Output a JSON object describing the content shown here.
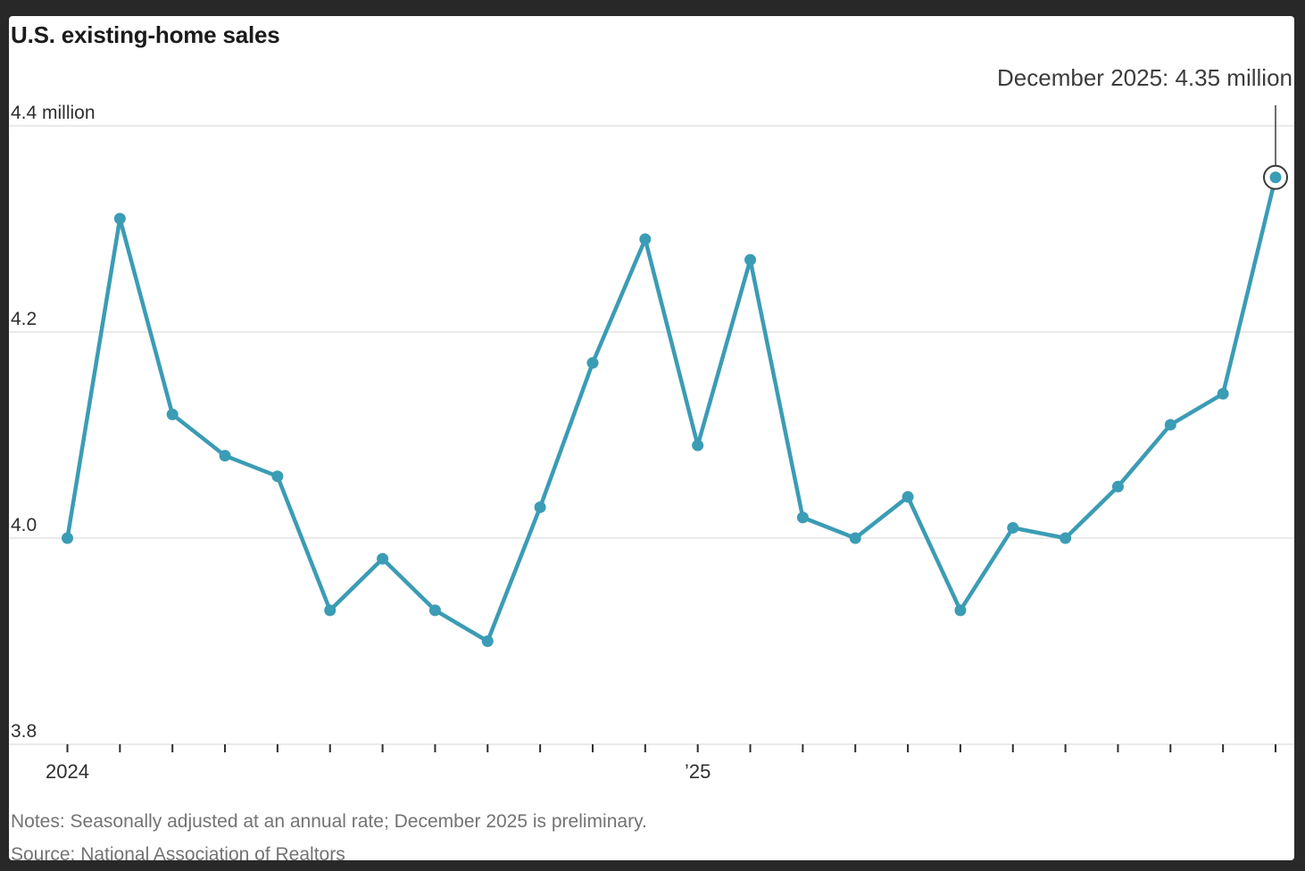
{
  "title": "U.S. existing-home sales",
  "annotation": {
    "text": "December 2025: 4.35 million",
    "point_label": "Dec 2025",
    "point_value": 4.35,
    "point_index": 23
  },
  "notes": "Notes: Seasonally adjusted at an annual rate; December 2025 is preliminary.",
  "source": "Source: National Association of Realtors",
  "colors": {
    "background": "#282828",
    "card": "#FFFFFF",
    "line": "#3B9CB5",
    "grid": "#E4E4E4",
    "axis_text": "#2E2E2E",
    "muted_text": "#737373",
    "annotation_ring": "#3A3A3A"
  },
  "chart_data": {
    "type": "line",
    "title": "U.S. existing-home sales",
    "unit": "million homes, seasonally adjusted annual rate",
    "x": [
      "Jan 2024",
      "Feb 2024",
      "Mar 2024",
      "Apr 2024",
      "May 2024",
      "Jun 2024",
      "Jul 2024",
      "Aug 2024",
      "Sep 2024",
      "Oct 2024",
      "Nov 2024",
      "Dec 2024",
      "Jan 2025",
      "Feb 2025",
      "Mar 2025",
      "Apr 2025",
      "May 2025",
      "Jun 2025",
      "Jul 2025",
      "Aug 2025",
      "Sep 2025",
      "Oct 2025",
      "Nov 2025",
      "Dec 2025"
    ],
    "values": [
      4.0,
      4.31,
      4.12,
      4.08,
      4.06,
      3.93,
      3.98,
      3.93,
      3.9,
      4.03,
      4.17,
      4.29,
      4.09,
      4.27,
      4.02,
      4.0,
      4.04,
      3.93,
      4.01,
      4.0,
      4.05,
      4.11,
      4.14,
      4.35
    ],
    "ylim": [
      3.8,
      4.4
    ],
    "yticks": [
      {
        "value": 4.4,
        "label": "4.4 million"
      },
      {
        "value": 4.2,
        "label": "4.2"
      },
      {
        "value": 4.0,
        "label": "4.0"
      },
      {
        "value": 3.8,
        "label": "3.8"
      }
    ],
    "xticks": "one per month",
    "xlabels": [
      {
        "index": 0,
        "label": "2024"
      },
      {
        "index": 12,
        "label": "’25"
      }
    ],
    "grid": "horizontal only",
    "legend": "none"
  }
}
